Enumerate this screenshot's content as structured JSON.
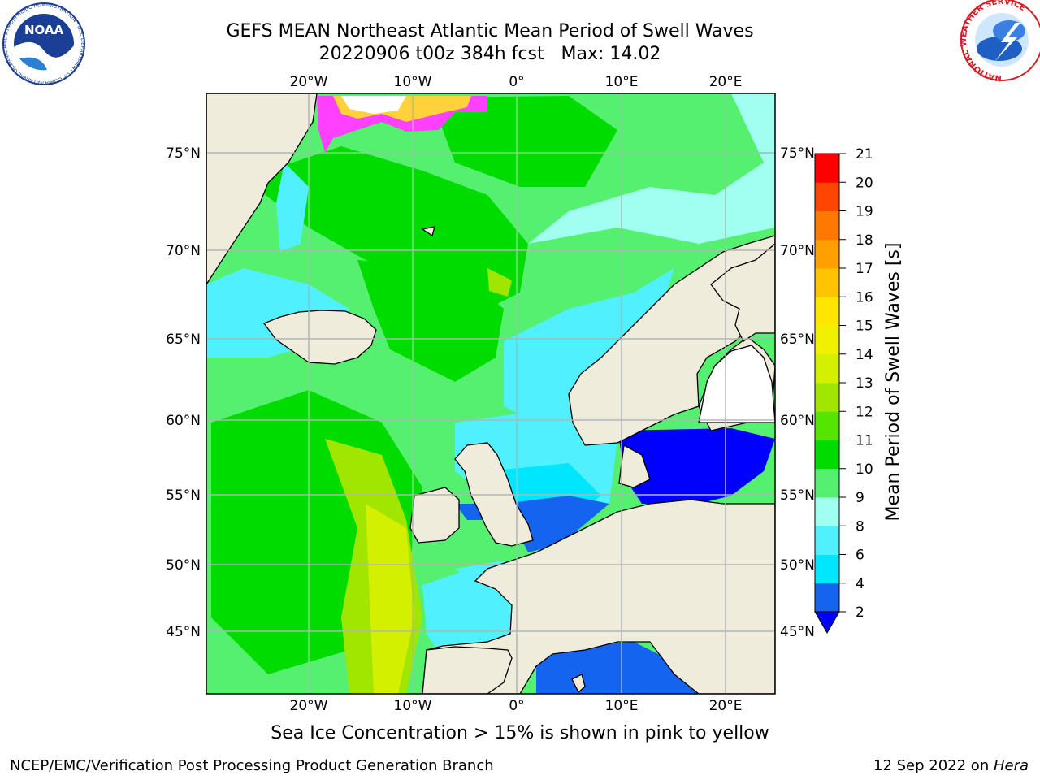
{
  "title": {
    "line1": "GEFS MEAN Northeast Atlantic Mean Period of Swell Waves",
    "line2": "20220906 t00z 384h fcst   Max: 14.02"
  },
  "logos": {
    "left": {
      "name": "NOAA",
      "text": "NOAA",
      "ring_text": "NATIONAL OCEANIC AND ATMOSPHERIC ADMINISTRATION · U.S. DEPARTMENT OF COMMERCE"
    },
    "right": {
      "name": "National Weather Service",
      "ring_text": "NATIONAL WEATHER SERVICE"
    }
  },
  "map": {
    "lon_labels": [
      "20°W",
      "10°W",
      "0°",
      "10°E",
      "20°E"
    ],
    "lat_labels": [
      "75°N",
      "70°N",
      "65°N",
      "60°N",
      "55°N",
      "50°N",
      "45°N"
    ],
    "colors": {
      "land": "#efecdc",
      "grid": "#b4b4b4",
      "coast": "#000000"
    }
  },
  "colorbar": {
    "label": "Mean Period of Swell Waves [s]",
    "ticks": [
      "2",
      "4",
      "6",
      "8",
      "9",
      "10",
      "11",
      "12",
      "13",
      "14",
      "15",
      "16",
      "17",
      "18",
      "19",
      "20",
      "21"
    ],
    "colors": [
      "#1464f0",
      "#00e6ff",
      "#50f0ff",
      "#a0fff0",
      "#55f070",
      "#00dc00",
      "#55e600",
      "#a0e600",
      "#d2f000",
      "#f0f000",
      "#ffe600",
      "#ffc300",
      "#ffa000",
      "#ff7800",
      "#ff4600",
      "#ff0000"
    ],
    "under_color": "#0000ff"
  },
  "caption": "Sea Ice Concentration > 15% is shown in pink to yellow",
  "footer": {
    "left": "NCEP/EMC/Verification Post Processing Product Generation Branch",
    "date": "12 Sep 2022 on ",
    "machine": "Hera"
  }
}
